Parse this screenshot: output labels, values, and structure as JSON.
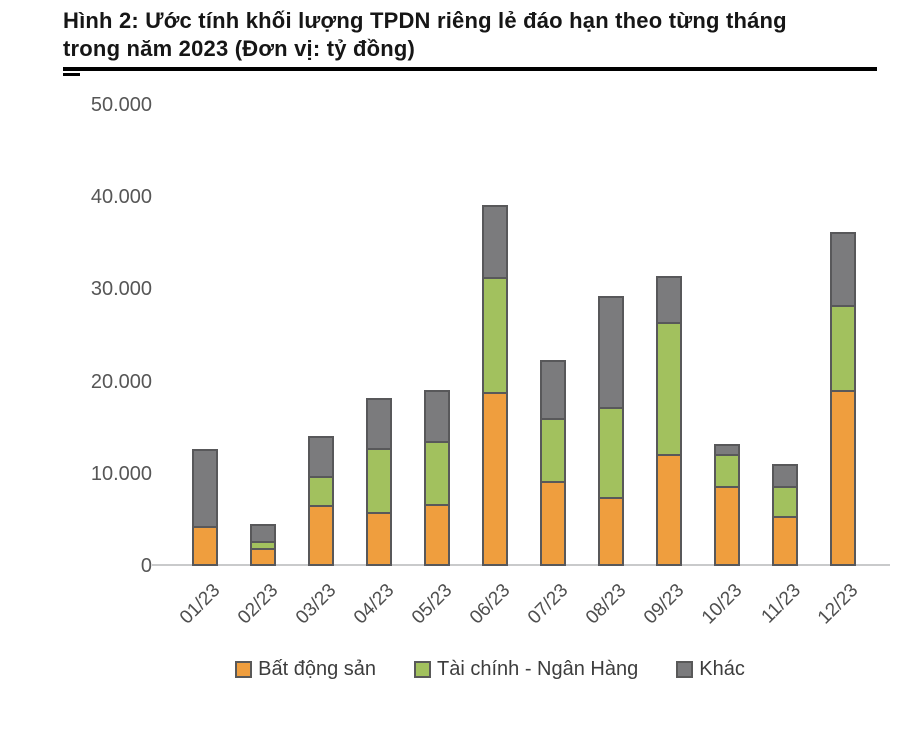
{
  "figure": {
    "title_line1": "Hình 2: Ước tính khối lượng TPDN riêng lẻ đáo hạn theo từng tháng",
    "title_line2": "trong năm 2023 (Đơn vị: tỷ đồng)"
  },
  "chart_data": {
    "type": "bar",
    "stacked": true,
    "title": "Hình 2: Ước tính khối lượng TPDN riêng lẻ đáo hạn theo từng tháng trong năm 2023 (Đơn vị: tỷ đồng)",
    "unit": "tỷ đồng",
    "categories": [
      "01/23",
      "02/23",
      "03/23",
      "04/23",
      "05/23",
      "06/23",
      "07/23",
      "08/23",
      "09/23",
      "10/23",
      "11/23",
      "12/23"
    ],
    "series": [
      {
        "name": "Bất động sản",
        "color": "#ef9e3e",
        "values": [
          4300,
          2000,
          6600,
          5900,
          6700,
          18900,
          9200,
          7500,
          12200,
          8700,
          5400,
          19100
        ]
      },
      {
        "name": "Tài chính - Ngân Hàng",
        "color": "#a2c15e",
        "values": [
          0,
          700,
          3200,
          6900,
          6900,
          12400,
          6900,
          9700,
          14300,
          3500,
          3300,
          9200
        ]
      },
      {
        "name": "Khác",
        "color": "#7b7b7d",
        "values": [
          8400,
          1900,
          4300,
          5400,
          5500,
          7900,
          6200,
          12100,
          4900,
          1000,
          2400,
          7900
        ]
      }
    ],
    "totals": [
      12700,
      4600,
      14100,
      18200,
      19100,
      39200,
      22300,
      29300,
      31400,
      13200,
      11100,
      36200
    ],
    "ylim": [
      0,
      50000
    ],
    "yticks": [
      {
        "value": 0,
        "label": "0"
      },
      {
        "value": 10000,
        "label": "10.000"
      },
      {
        "value": 20000,
        "label": "20.000"
      },
      {
        "value": 30000,
        "label": "30.000"
      },
      {
        "value": 40000,
        "label": "40.000"
      },
      {
        "value": 50000,
        "label": "50.000"
      }
    ],
    "grid": false,
    "legend_position": "bottom",
    "bar_outline_color": "#58585a",
    "axis_line_color": "#c9cacb"
  }
}
